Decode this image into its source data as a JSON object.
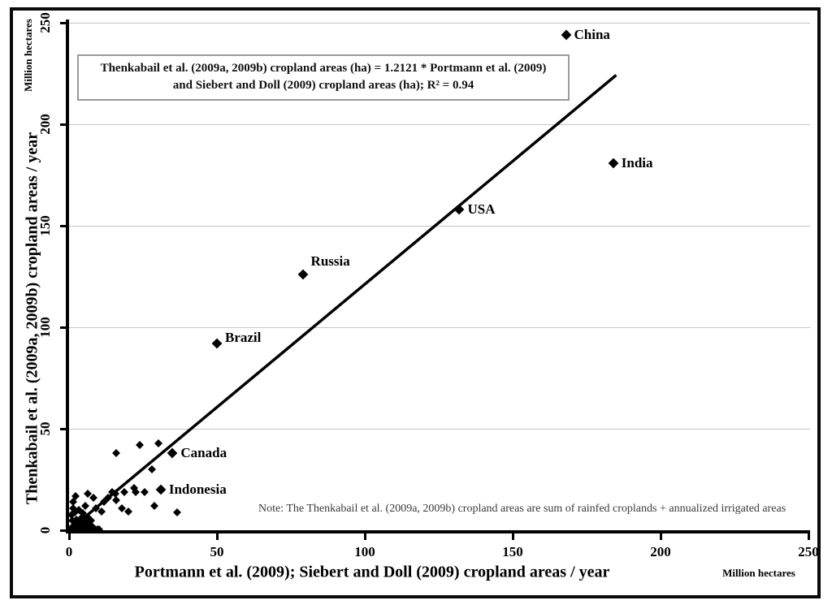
{
  "figure": {
    "background": "#ffffff",
    "frame_color": "#0a0a0a",
    "gridline_color": "#c6c6c6",
    "marker_color": "#000000",
    "trendline_color": "#000000"
  },
  "chart_data": {
    "type": "scatter",
    "xlabel": "Portmann et al. (2009); Siebert and Doll (2009) cropland areas / year",
    "ylabel": "Thenkabail et al. (2009a, 2009b) cropland areas / year",
    "x_unit_label": "Million hectares",
    "y_unit_label": "Million hectares",
    "xlim": [
      0,
      250
    ],
    "ylim": [
      0,
      250
    ],
    "x_ticks": [
      "0",
      "50",
      "100",
      "150",
      "200",
      "250"
    ],
    "y_ticks": [
      "0",
      "50",
      "100",
      "150",
      "200",
      "250"
    ],
    "grid": "horizontal-only",
    "equation_line1": "Thenkabail et al. (2009a, 2009b) cropland areas (ha) = 1.2121 * Portmann et al. (2009)",
    "equation_line2": "and Siebert and Doll (2009) cropland areas (ha); R² = 0.94",
    "note": "Note: The Thenkabail et al. (2009a, 2009b) cropland areas are sum of  rainfed  croplands + annualized irrigated areas",
    "trendline": {
      "x1": 0,
      "y1": 0,
      "x2": 185,
      "y2": 224.2,
      "slope": 1.2121,
      "r_squared": 0.94
    },
    "labeled_points": [
      {
        "label": "China",
        "x": 168,
        "y": 244,
        "label_dy": 0
      },
      {
        "label": "India",
        "x": 184,
        "y": 181,
        "label_dy": 0
      },
      {
        "label": "USA",
        "x": 132,
        "y": 158,
        "label_dy": 0
      },
      {
        "label": "Russia",
        "x": 79,
        "y": 126,
        "label_dy": -16
      },
      {
        "label": "Brazil",
        "x": 50,
        "y": 92,
        "label_dy": -7
      },
      {
        "label": "Canada",
        "x": 35,
        "y": 38,
        "label_dy": 0
      },
      {
        "label": "Indonesia",
        "x": 31,
        "y": 20,
        "label_dy": 0
      }
    ],
    "points": [
      [
        0.3,
        0.4
      ],
      [
        0.8,
        1.2
      ],
      [
        1.2,
        0.3
      ],
      [
        1.6,
        2
      ],
      [
        2,
        0.8
      ],
      [
        2.3,
        3
      ],
      [
        2.8,
        1.5
      ],
      [
        3.2,
        0.4
      ],
      [
        3.6,
        2.6
      ],
      [
        4,
        1
      ],
      [
        4.4,
        3.8
      ],
      [
        4.8,
        0.6
      ],
      [
        5.2,
        2.2
      ],
      [
        5.6,
        4.4
      ],
      [
        6,
        1.2
      ],
      [
        6.4,
        3
      ],
      [
        7,
        0.5
      ],
      [
        7.6,
        2
      ],
      [
        8.4,
        1
      ],
      [
        9.6,
        0.6
      ],
      [
        10.2,
        0.5
      ],
      [
        1,
        5
      ],
      [
        2.6,
        5.4
      ],
      [
        4.2,
        6
      ],
      [
        6.2,
        6.4
      ],
      [
        7.4,
        5
      ],
      [
        0.8,
        7.6
      ],
      [
        1.4,
        14
      ],
      [
        1.5,
        11
      ],
      [
        2.2,
        17
      ],
      [
        3.3,
        10
      ],
      [
        2,
        9
      ],
      [
        5.5,
        12
      ],
      [
        6.3,
        18
      ],
      [
        4.6,
        8.4
      ],
      [
        8.2,
        16
      ],
      [
        9.1,
        11
      ],
      [
        11,
        9.2
      ],
      [
        11.8,
        14
      ],
      [
        13.2,
        16
      ],
      [
        14.6,
        19
      ],
      [
        15.7,
        18
      ],
      [
        16,
        15
      ],
      [
        17.9,
        11
      ],
      [
        18.7,
        19
      ],
      [
        20,
        9.2
      ],
      [
        22,
        21
      ],
      [
        22.5,
        19
      ],
      [
        25.5,
        19
      ],
      [
        28.8,
        12
      ],
      [
        36.5,
        9
      ],
      [
        15.9,
        38
      ],
      [
        23.9,
        42
      ],
      [
        30.2,
        43
      ],
      [
        28,
        30
      ]
    ]
  }
}
